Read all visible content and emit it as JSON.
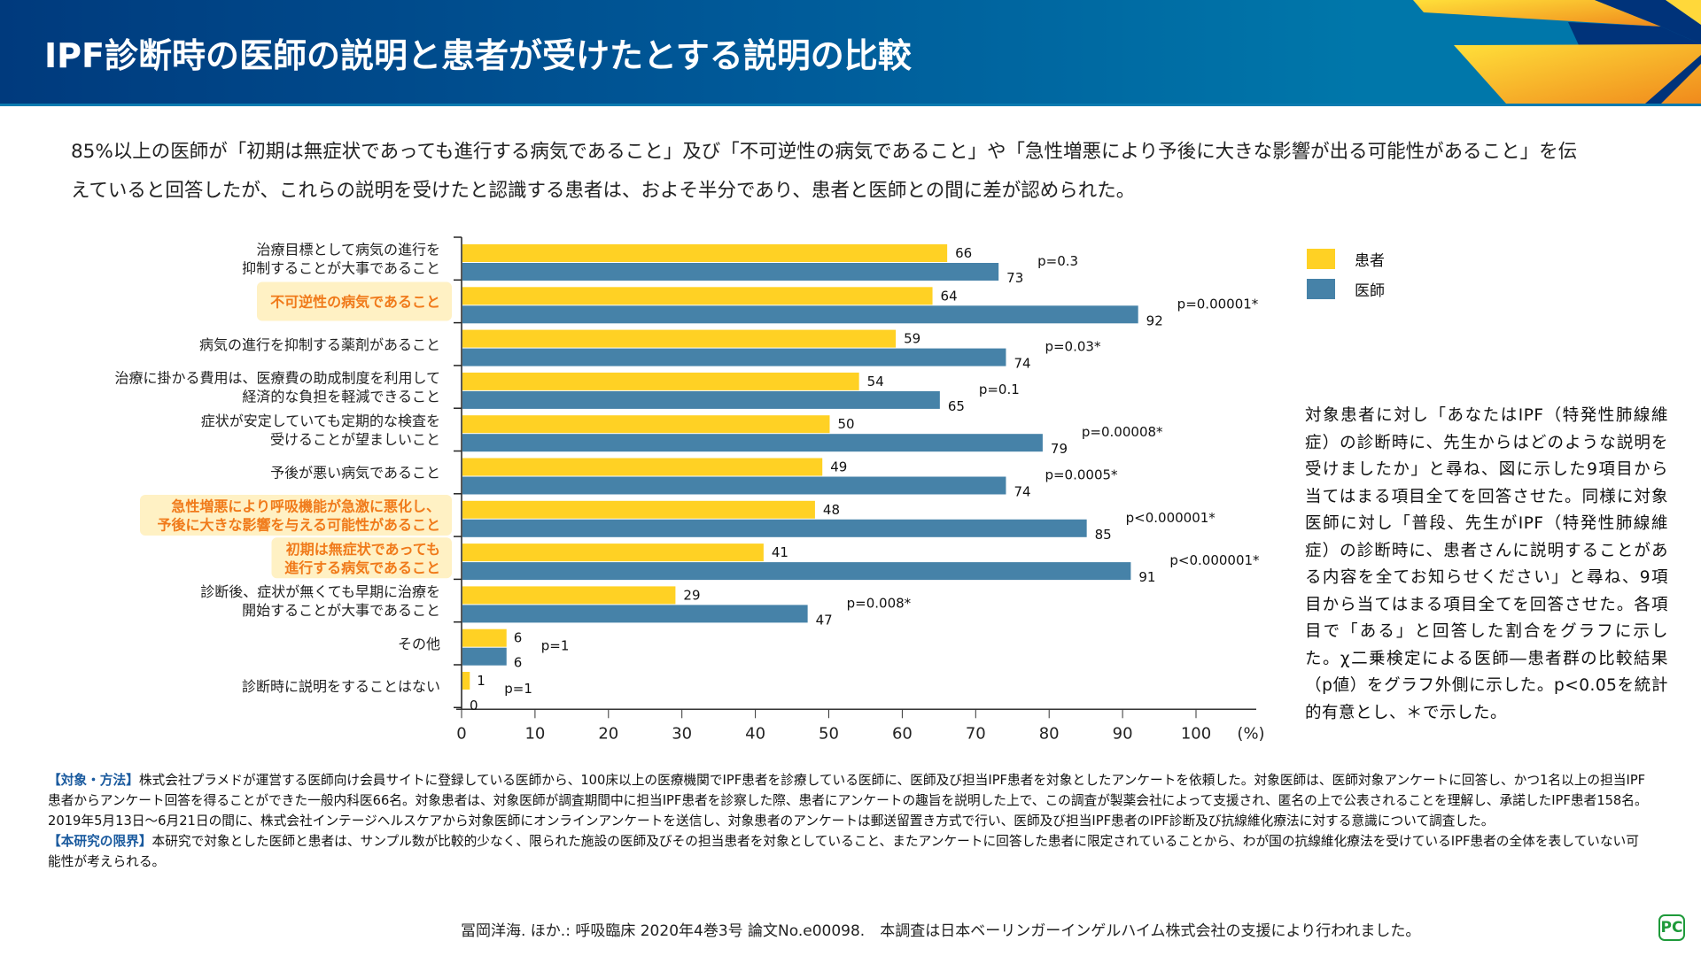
{
  "header": {
    "title": "IPF診断時の医師の説明と患者が受けたとする説明の比較"
  },
  "summary": "85%以上の医師が「初期は無症状であっても進行する病気であること」及び「不可逆性の病気であること」や「急性増悪により予後に大きな影響が出る可能性があること」を伝えていると回答したが、これらの説明を受けたと認識する患者は、およそ半分であり、患者と医師との間に差が認められた。",
  "colors": {
    "patient": "#ffd124",
    "doctor": "#4682a8",
    "highlight_bg": "#fff1c4",
    "highlight_text": "#f07a1a"
  },
  "chart_data": {
    "type": "bar",
    "orientation": "horizontal",
    "title": "",
    "xlabel": "(%)",
    "ylabel": "",
    "xlim": [
      0,
      100
    ],
    "xticks": [
      0,
      10,
      20,
      30,
      40,
      50,
      60,
      70,
      80,
      90,
      100
    ],
    "unit_label": "(%)",
    "grid": false,
    "legend_position": "right",
    "categories": [
      {
        "lines": [
          "治療目標として病気の進行を",
          "抑制することが大事であること"
        ],
        "highlight": false
      },
      {
        "lines": [
          "不可逆性の病気であること"
        ],
        "highlight": true
      },
      {
        "lines": [
          "病気の進行を抑制する薬剤があること"
        ],
        "highlight": false
      },
      {
        "lines": [
          "治療に掛かる費用は、医療費の助成制度を利用して",
          "経済的な負担を軽減できること"
        ],
        "highlight": false
      },
      {
        "lines": [
          "症状が安定していても定期的な検査を",
          "受けることが望ましいこと"
        ],
        "highlight": false
      },
      {
        "lines": [
          "予後が悪い病気であること"
        ],
        "highlight": false
      },
      {
        "lines": [
          "急性増悪により呼吸機能が急激に悪化し、",
          "予後に大きな影響を与える可能性があること"
        ],
        "highlight": true
      },
      {
        "lines": [
          "初期は無症状であっても",
          "進行する病気であること"
        ],
        "highlight": true
      },
      {
        "lines": [
          "診断後、症状が無くても早期に治療を",
          "開始することが大事であること"
        ],
        "highlight": false
      },
      {
        "lines": [
          "その他"
        ],
        "highlight": false
      },
      {
        "lines": [
          "診断時に説明をすることはない"
        ],
        "highlight": false
      }
    ],
    "series": [
      {
        "name": "患者",
        "color": "#ffd124",
        "values": [
          66,
          64,
          59,
          54,
          50,
          49,
          48,
          41,
          29,
          6,
          1
        ]
      },
      {
        "name": "医師",
        "color": "#4682a8",
        "values": [
          73,
          92,
          74,
          65,
          79,
          74,
          85,
          91,
          47,
          6,
          0
        ]
      }
    ],
    "p_values": [
      "p=0.3",
      "p=0.00001*",
      "p=0.03*",
      "p=0.1",
      "p=0.00008*",
      "p=0.0005*",
      "p<0.000001*",
      "p<0.000001*",
      "p=0.008*",
      "p=1",
      "p=1"
    ]
  },
  "legend": {
    "items": [
      {
        "label": "患者"
      },
      {
        "label": "医師"
      }
    ]
  },
  "note": "対象患者に対し「あなたはIPF（特発性肺線維症）の診断時に、先生からはどのような説明を受けましたか」と尋ね、図に示した9項目から当てはまる項目全てを回答させた。同様に対象医師に対し「普段、先生がIPF（特発性肺線維症）の診断時に、患者さんに説明することがある内容を全てお知らせください」と尋ね、9項目から当てはまる項目全てを回答させた。各項目で「ある」と回答した割合をグラフに示した。χ二乗検定による医師―患者群の比較結果（p値）をグラフ外側に示した。p<0.05を統計的有意とし、＊で示した。",
  "methods": {
    "lead1": "【対象・方法】",
    "text1": "株式会社プラメドが運営する医師向け会員サイトに登録している医師から、100床以上の医療機関でIPF患者を診療している医師に、医師及び担当IPF患者を対象としたアンケートを依頼した。対象医師は、医師対象アンケートに回答し、かつ1名以上の担当IPF患者からアンケート回答を得ることができた一般内科医66名。対象患者は、対象医師が調査期間中に担当IPF患者を診察した際、患者にアンケートの趣旨を説明した上で、この調査が製薬会社によって支援され、匿名の上で公表されることを理解し、承諾したIPF患者158名。2019年5月13日～6月21日の間に、株式会社インテージヘルスケアから対象医師にオンラインアンケートを送信し、対象患者のアンケートは郵送留置き方式で行い、医師及び担当IPF患者のIPF診断及び抗線維化療法に対する意識について調査した。",
    "lead2": "【本研究の限界】",
    "text2": "本研究で対象とした医師と患者は、サンプル数が比較的少なく、限られた施設の医師及びその担当患者を対象としていること、またアンケートに回答した患者に限定されていることから、わが国の抗線維化療法を受けているIPF患者の全体を表していない可能性が考えられる。"
  },
  "citation": "冨岡洋海. ほか.: 呼吸臨床 2020年4巻3号 論文No.e00098.　本調査は日本ベーリンガーインゲルハイム株式会社の支援により行われました。",
  "logo": "PC"
}
